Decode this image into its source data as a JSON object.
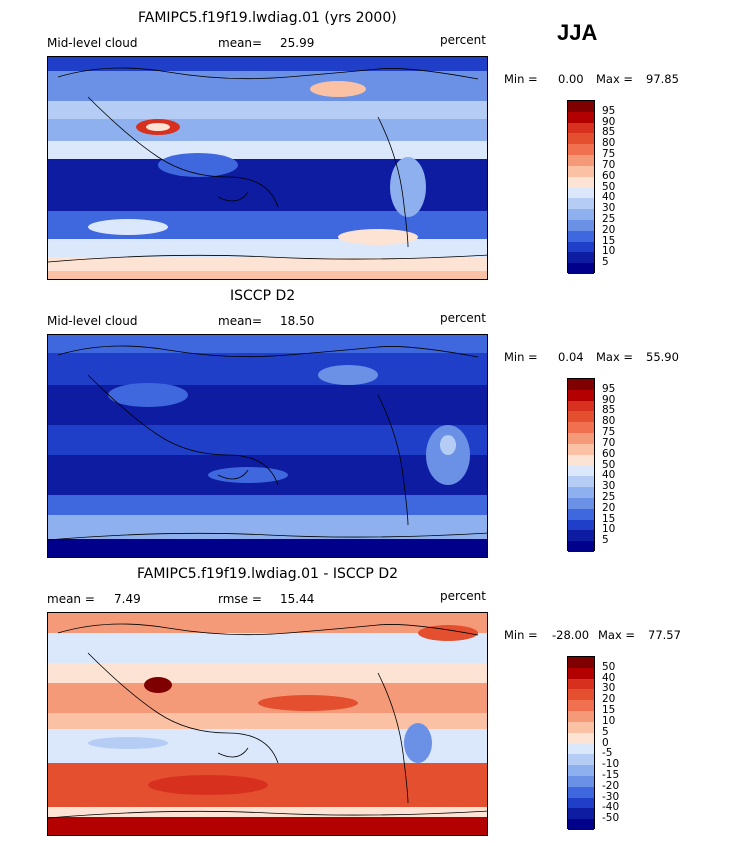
{
  "season": "JJA",
  "panels": [
    {
      "id": "model",
      "title": "FAMIPC5.f19f19.lwdiag.01 (yrs 2000)",
      "left_label": "Mid-level cloud",
      "mean_label": "mean=",
      "mean_value": "25.99",
      "units": "percent",
      "min_label": "Min =",
      "min_value": "0.00",
      "max_label": "Max =",
      "max_value": "97.85",
      "colorbar_ticks": [
        "95",
        "90",
        "85",
        "80",
        "75",
        "70",
        "60",
        "50",
        "40",
        "30",
        "25",
        "20",
        "15",
        "10",
        "5"
      ]
    },
    {
      "id": "obs",
      "title": "ISCCP D2",
      "left_label": "Mid-level cloud",
      "mean_label": "mean=",
      "mean_value": "18.50",
      "units": "percent",
      "min_label": "Min =",
      "min_value": "0.04",
      "max_label": "Max =",
      "max_value": "55.90",
      "colorbar_ticks": [
        "95",
        "90",
        "85",
        "80",
        "75",
        "70",
        "60",
        "50",
        "40",
        "30",
        "25",
        "20",
        "15",
        "10",
        "5"
      ]
    },
    {
      "id": "diff",
      "title": "FAMIPC5.f19f19.lwdiag.01 - ISCCP D2",
      "left_label": "mean =",
      "mean_value": "7.49",
      "rmse_label": "rmse =",
      "rmse_value": "15.44",
      "units": "percent",
      "min_label": "Min =",
      "min_value": "-28.00",
      "max_label": "Max =",
      "max_value": "77.57",
      "colorbar_ticks": [
        "50",
        "40",
        "30",
        "20",
        "15",
        "10",
        "5",
        "0",
        "-5",
        "-10",
        "-15",
        "-20",
        "-30",
        "-40",
        "-50"
      ]
    }
  ],
  "colors": {
    "scale": [
      "#7f0000",
      "#b30000",
      "#d7301f",
      "#e4502f",
      "#f07050",
      "#f59a78",
      "#fbc1a5",
      "#fde3d3",
      "#dbe7fb",
      "#b5cdf5",
      "#8fb0ee",
      "#6b91e6",
      "#3f67de",
      "#1f3fc8",
      "#0d1ca0",
      "#00008b"
    ]
  }
}
